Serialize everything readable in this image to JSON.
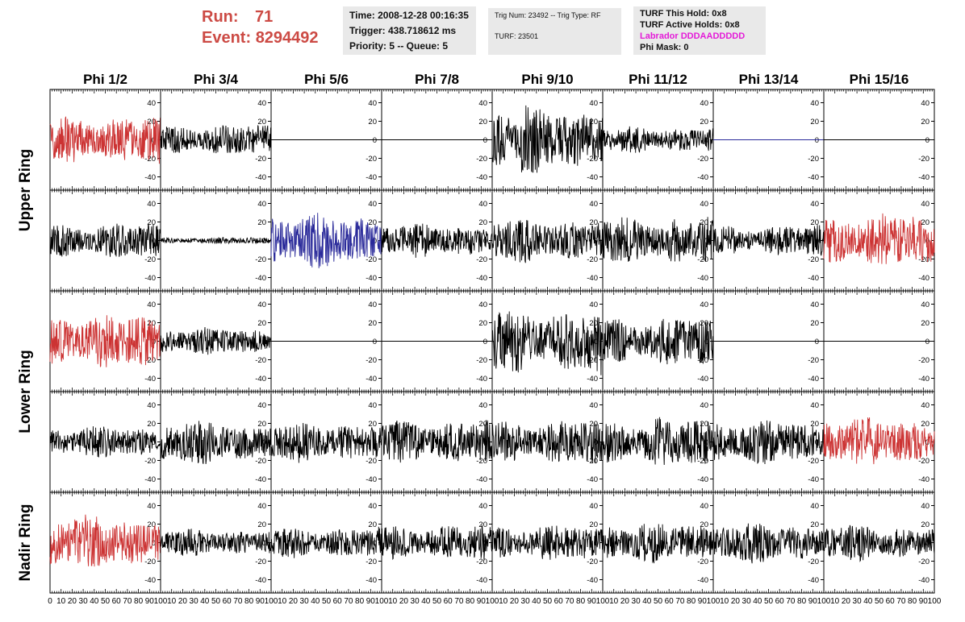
{
  "header": {
    "run_label": "Run:",
    "run_value": "71",
    "event_label": "Event:",
    "event_value": "8294492",
    "time": "Time: 2008-12-28 00:16:35",
    "trigger": "Trigger: 438.718612 ms",
    "priority": "Priority: 5 -- Queue: 5",
    "trig_num": "Trig Num: 23492 -- Trig Type: RF",
    "turf": "TURF: 23501",
    "turf_this_hold": "TURF This Hold: 0x8",
    "turf_active_holds": "TURF Active Holds: 0x8",
    "labrador": "Labrador DDDAADDDDD",
    "phi_mask": "Phi Mask: 0"
  },
  "colors": {
    "header_red": "#cc4a44",
    "labrador": "#e41ad8",
    "triggered": "#cc3333",
    "normal": "#000000",
    "blue": "#2a2a9a"
  },
  "chart_data": {
    "type": "line",
    "columns": [
      "Phi 1/2",
      "Phi 3/4",
      "Phi 5/6",
      "Phi 7/8",
      "Phi 9/10",
      "Phi 11/12",
      "Phi 13/14",
      "Phi 15/16"
    ],
    "row_groups": [
      {
        "label": "Upper Ring",
        "rows": 2
      },
      {
        "label": "Lower Ring",
        "rows": 2
      },
      {
        "label": "Nadir Ring",
        "rows": 1
      }
    ],
    "xlim": [
      0,
      100
    ],
    "ylim": [
      -50,
      50
    ],
    "x_ticks": [
      "0",
      "10",
      "20",
      "30",
      "40",
      "50",
      "60",
      "70",
      "80",
      "90",
      "100"
    ],
    "y_ticks": [
      "-40",
      "-20",
      "0",
      "20",
      "40"
    ],
    "grid": false,
    "panels": [
      [
        {
          "color": "red",
          "amplitude": 22
        },
        {
          "color": "black",
          "amplitude": 14
        },
        {
          "color": "black",
          "amplitude": 0
        },
        {
          "color": "black",
          "amplitude": 0
        },
        {
          "color": "black",
          "amplitude": 30
        },
        {
          "color": "black",
          "amplitude": 12
        },
        {
          "color": "blue",
          "amplitude": 0
        },
        {
          "color": "black",
          "amplitude": 0
        }
      ],
      [
        {
          "color": "black",
          "amplitude": 16
        },
        {
          "color": "black",
          "amplitude": 3
        },
        {
          "color": "blue",
          "amplitude": 24
        },
        {
          "color": "black",
          "amplitude": 16
        },
        {
          "color": "black",
          "amplitude": 20
        },
        {
          "color": "black",
          "amplitude": 22
        },
        {
          "color": "black",
          "amplitude": 14
        },
        {
          "color": "red",
          "amplitude": 24
        }
      ],
      [
        {
          "color": "red",
          "amplitude": 24
        },
        {
          "color": "black",
          "amplitude": 12
        },
        {
          "color": "black",
          "amplitude": 0
        },
        {
          "color": "black",
          "amplitude": 0
        },
        {
          "color": "black",
          "amplitude": 30
        },
        {
          "color": "black",
          "amplitude": 22
        },
        {
          "color": "black",
          "amplitude": 0
        },
        {
          "color": "black",
          "amplitude": 0
        }
      ],
      [
        {
          "color": "black",
          "amplitude": 14
        },
        {
          "color": "black",
          "amplitude": 20
        },
        {
          "color": "black",
          "amplitude": 18
        },
        {
          "color": "black",
          "amplitude": 20
        },
        {
          "color": "black",
          "amplitude": 20
        },
        {
          "color": "black",
          "amplitude": 22
        },
        {
          "color": "black",
          "amplitude": 20
        },
        {
          "color": "red",
          "amplitude": 22
        }
      ],
      [
        {
          "color": "red",
          "amplitude": 24
        },
        {
          "color": "black",
          "amplitude": 12
        },
        {
          "color": "black",
          "amplitude": 14
        },
        {
          "color": "black",
          "amplitude": 16
        },
        {
          "color": "black",
          "amplitude": 16
        },
        {
          "color": "black",
          "amplitude": 18
        },
        {
          "color": "black",
          "amplitude": 18
        },
        {
          "color": "black",
          "amplitude": 16
        }
      ]
    ]
  }
}
